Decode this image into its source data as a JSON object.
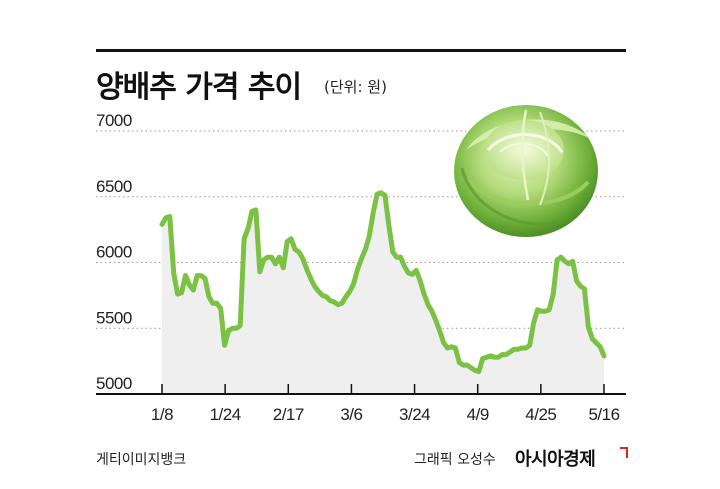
{
  "header": {
    "title": "양배추 가격 추이",
    "unit": "(단위: 원)"
  },
  "footer": {
    "photo_credit": "게티이미지뱅크",
    "graphic_credit": "그래픽 오성수",
    "brand": "아시아경제"
  },
  "chart_data": {
    "type": "area",
    "title": "양배추 가격 추이",
    "unit": "(단위: 원)",
    "ylim": [
      5000,
      7000
    ],
    "yticks": [
      5000,
      5500,
      6000,
      6500,
      7000
    ],
    "xtick_labels": [
      "1/8",
      "1/24",
      "2/17",
      "3/6",
      "3/24",
      "4/9",
      "4/25",
      "5/16"
    ],
    "grid": true,
    "line_color": "#7bc143",
    "fill_color": "#efefef",
    "grid_color": "#9a9a9a",
    "series": [
      {
        "values": [
          6290,
          6340,
          6350,
          5920,
          5760,
          5770,
          5900,
          5830,
          5790,
          5900,
          5900,
          5880,
          5740,
          5690,
          5690,
          5650,
          5370,
          5480,
          5500,
          5500,
          5520,
          6180,
          6260,
          6390,
          6400,
          5930,
          6020,
          6040,
          6040,
          5990,
          6040,
          5960,
          6160,
          6180,
          6100,
          6080,
          6030,
          5950,
          5880,
          5820,
          5780,
          5750,
          5740,
          5710,
          5700,
          5680,
          5690,
          5740,
          5780,
          5840,
          5950,
          6030,
          6100,
          6200,
          6380,
          6520,
          6530,
          6510,
          6280,
          6080,
          6040,
          6040,
          5970,
          5920,
          5910,
          5940,
          5860,
          5760,
          5680,
          5630,
          5560,
          5480,
          5390,
          5350,
          5360,
          5350,
          5240,
          5220,
          5220,
          5200,
          5180,
          5170,
          5270,
          5280,
          5290,
          5280,
          5280,
          5300,
          5300,
          5320,
          5340,
          5340,
          5350,
          5350,
          5370,
          5540,
          5640,
          5630,
          5630,
          5640,
          5760,
          6020,
          6040,
          6010,
          5990,
          6010,
          5860,
          5820,
          5800,
          5510,
          5420,
          5390,
          5360,
          5290
        ]
      }
    ]
  }
}
